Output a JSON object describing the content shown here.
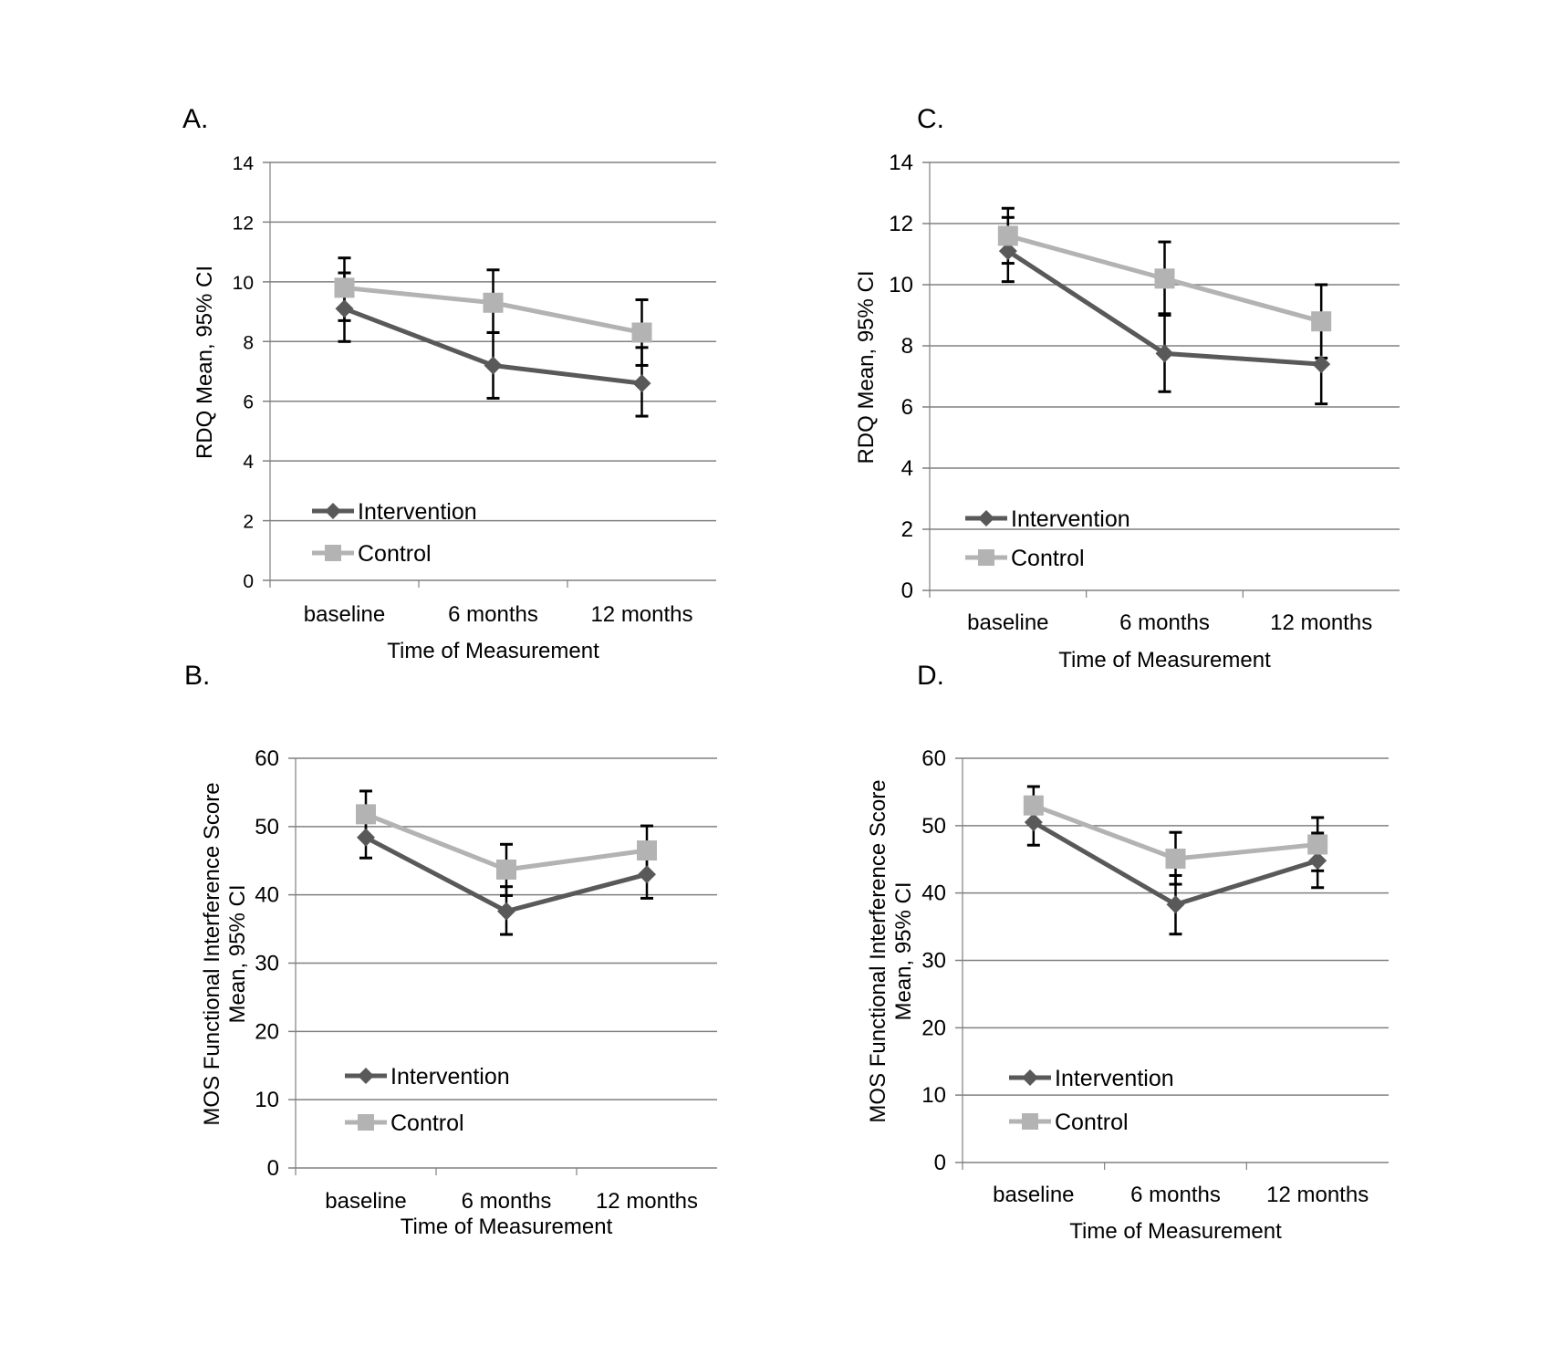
{
  "figure": {
    "categories": [
      "baseline",
      "6 months",
      "12 months"
    ],
    "series_names": [
      "Intervention",
      "Control"
    ],
    "colors": {
      "intervention": "#595959",
      "control": "#b3b3b3",
      "error_bar": "#000000",
      "grid": "#808080"
    }
  },
  "chart_data": [
    {
      "panel": "A.",
      "type": "line",
      "title": "",
      "xlabel": "Time of Measurement",
      "ylabel": "RDQ Mean, 95% CI",
      "categories": [
        "baseline",
        "6 months",
        "12 months"
      ],
      "ylim": [
        0,
        14
      ],
      "yticks": [
        0,
        2,
        4,
        6,
        8,
        10,
        12,
        14
      ],
      "grid": true,
      "legend": "bottom-left",
      "series": [
        {
          "name": "Intervention",
          "marker": "diamond",
          "values": [
            9.1,
            7.2,
            6.6
          ],
          "ci_low": [
            8.0,
            6.1,
            5.5
          ],
          "ci_high": [
            10.3,
            8.3,
            7.8
          ]
        },
        {
          "name": "Control",
          "marker": "square",
          "values": [
            9.8,
            9.3,
            8.3
          ],
          "ci_low": [
            8.7,
            8.3,
            7.2
          ],
          "ci_high": [
            10.8,
            10.4,
            9.4
          ]
        }
      ]
    },
    {
      "panel": "B.",
      "type": "line",
      "title": "",
      "xlabel": "Time of Measurement",
      "ylabel": "MOS Functional Interference Score Mean, 95% CI",
      "ylabel_lines": [
        "MOS Functional Interference Score",
        "Mean, 95% CI"
      ],
      "categories": [
        "baseline",
        "6 months",
        "12 months"
      ],
      "ylim": [
        0,
        60
      ],
      "yticks": [
        0,
        10,
        20,
        30,
        40,
        50,
        60
      ],
      "grid": true,
      "legend": "bottom-left",
      "series": [
        {
          "name": "Intervention",
          "marker": "diamond",
          "values": [
            48.4,
            37.6,
            43.0
          ],
          "ci_low": [
            45.4,
            34.2,
            39.5
          ],
          "ci_high": [
            51.4,
            41.2,
            46.5
          ]
        },
        {
          "name": "Control",
          "marker": "square",
          "values": [
            51.8,
            43.7,
            46.5
          ],
          "ci_low": [
            48.4,
            39.9,
            43.0
          ],
          "ci_high": [
            55.2,
            47.4,
            50.1
          ]
        }
      ]
    },
    {
      "panel": "C.",
      "type": "line",
      "title": "",
      "xlabel": "Time of Measurement",
      "ylabel": "RDQ Mean, 95% CI",
      "categories": [
        "baseline",
        "6 months",
        "12 months"
      ],
      "ylim": [
        0,
        14
      ],
      "yticks": [
        0,
        2,
        4,
        6,
        8,
        10,
        12,
        14
      ],
      "grid": true,
      "legend": "bottom-left",
      "series": [
        {
          "name": "Intervention",
          "marker": "diamond",
          "values": [
            11.1,
            7.75,
            7.4
          ],
          "ci_low": [
            10.1,
            6.5,
            6.1
          ],
          "ci_high": [
            12.2,
            9.05,
            8.7
          ]
        },
        {
          "name": "Control",
          "marker": "square",
          "values": [
            11.6,
            10.2,
            8.8
          ],
          "ci_low": [
            10.7,
            9.0,
            7.6
          ],
          "ci_high": [
            12.5,
            11.4,
            10.0
          ]
        }
      ]
    },
    {
      "panel": "D.",
      "type": "line",
      "title": "",
      "xlabel": "Time of Measurement",
      "ylabel": "MOS Functional Interference Score Mean, 95% CI",
      "ylabel_lines": [
        "MOS Functional Interference Score",
        "Mean, 95% CI"
      ],
      "categories": [
        "baseline",
        "6 months",
        "12 months"
      ],
      "ylim": [
        0,
        60
      ],
      "yticks": [
        0,
        10,
        20,
        30,
        40,
        50,
        60
      ],
      "grid": true,
      "legend": "bottom-left",
      "series": [
        {
          "name": "Intervention",
          "marker": "diamond",
          "values": [
            50.5,
            38.3,
            44.8
          ],
          "ci_low": [
            47.1,
            33.9,
            40.8
          ],
          "ci_high": [
            53.8,
            42.6,
            48.9
          ]
        },
        {
          "name": "Control",
          "marker": "square",
          "values": [
            53.0,
            45.1,
            47.2
          ],
          "ci_low": [
            50.2,
            41.3,
            43.3
          ],
          "ci_high": [
            55.8,
            49.0,
            51.2
          ]
        }
      ]
    }
  ]
}
